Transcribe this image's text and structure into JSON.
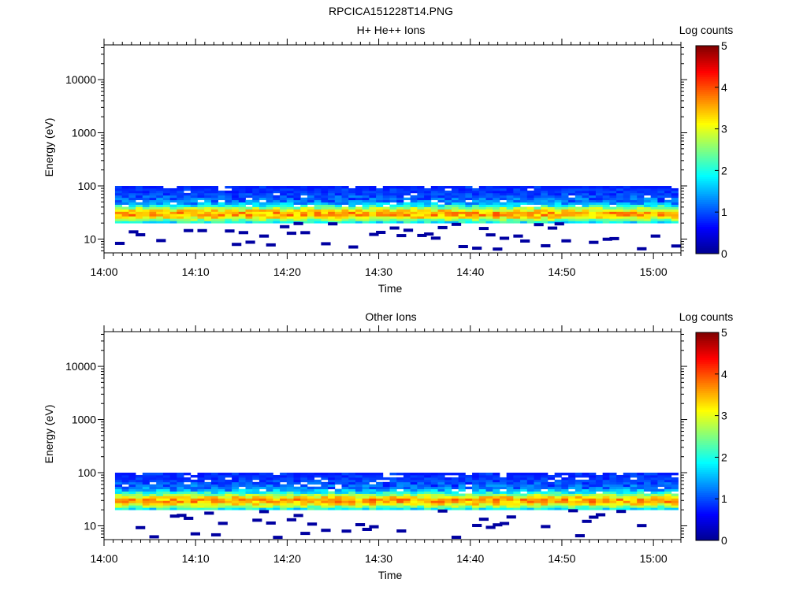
{
  "figure": {
    "title": "RPCICA151228T14.PNG"
  },
  "colors": {
    "colormap": [
      "#00008f",
      "#0000ff",
      "#0080ff",
      "#00ffff",
      "#80ff80",
      "#ffff00",
      "#ff8000",
      "#ff0000",
      "#800000"
    ]
  },
  "chart_data": [
    {
      "type": "heatmap",
      "title": "H+ He++ Ions",
      "xlabel": "Time",
      "ylabel": "Energy (eV)",
      "x_ticks": [
        "14:00",
        "14:10",
        "14:20",
        "14:30",
        "14:40",
        "14:50",
        "15:00"
      ],
      "x_range": [
        "14:00",
        "15:03"
      ],
      "y_scale": "log",
      "y_ticks": [
        "10",
        "100",
        "1000",
        "10000"
      ],
      "y_range": [
        5.5,
        45000
      ],
      "colorbar": {
        "label": "Log counts",
        "range": [
          0,
          5
        ],
        "ticks": [
          "0",
          "1",
          "2",
          "3",
          "4",
          "5"
        ]
      },
      "band_energy_range_eV": [
        20,
        100
      ],
      "peak_energy_eV": 30,
      "peak_log_counts": 3.0,
      "sparse_energy_range_eV": [
        6,
        20
      ],
      "sparse_log_counts": 0.1
    },
    {
      "type": "heatmap",
      "title": "Other Ions",
      "xlabel": "Time",
      "ylabel": "Energy (eV)",
      "x_ticks": [
        "14:00",
        "14:10",
        "14:20",
        "14:30",
        "14:40",
        "14:50",
        "15:00"
      ],
      "x_range": [
        "14:00",
        "15:03"
      ],
      "y_scale": "log",
      "y_ticks": [
        "10",
        "100",
        "1000",
        "10000"
      ],
      "y_range": [
        5.5,
        45000
      ],
      "colorbar": {
        "label": "Log counts",
        "range": [
          0,
          5
        ],
        "ticks": [
          "0",
          "1",
          "2",
          "3",
          "4",
          "5"
        ]
      },
      "band_energy_range_eV": [
        20,
        100
      ],
      "peak_energy_eV": 30,
      "peak_log_counts": 3.0,
      "sparse_energy_range_eV": [
        6,
        20
      ],
      "sparse_log_counts": 0.1
    }
  ]
}
